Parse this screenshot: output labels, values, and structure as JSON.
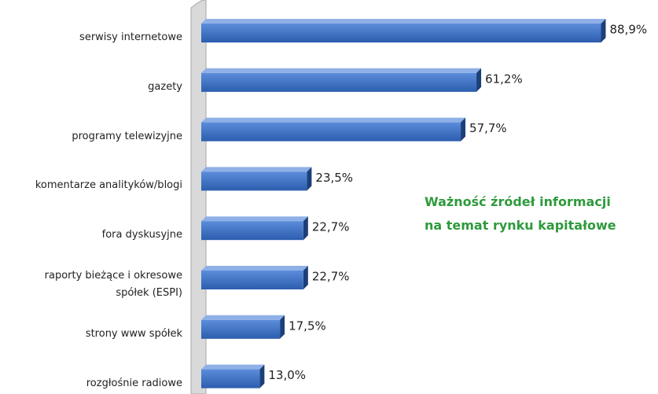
{
  "chart_data": {
    "type": "bar",
    "orientation": "horizontal",
    "title": [
      "Ważność źródeł informacji",
      "na temat rynku kapitałowe"
    ],
    "categories": [
      "serwisy internetowe",
      "gazety",
      "programy telewizyjne",
      "komentarze analityków/blogi",
      "fora dyskusyjne",
      "raporty bieżące i okresowe\nspółek (ESPI)",
      "strony www spółek",
      "rozgłośnie radiowe"
    ],
    "values": [
      88.9,
      61.2,
      57.7,
      23.5,
      22.7,
      22.7,
      17.5,
      13.0
    ],
    "value_labels": [
      "88,9%",
      "61,2%",
      "57,7%",
      "23,5%",
      "22,7%",
      "22,7%",
      "17,5%",
      "13,0%"
    ],
    "color": "#3b6fc4"
  }
}
